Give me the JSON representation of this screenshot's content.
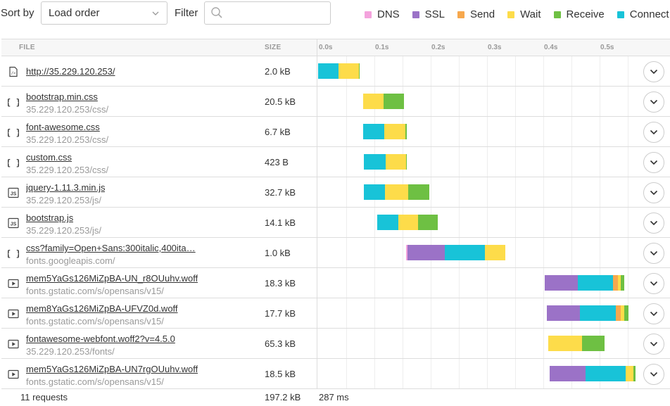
{
  "toolbar": {
    "sort_label": "Sort by",
    "sort_value": "Load order",
    "filter_label": "Filter",
    "filter_value": "",
    "filter_placeholder": ""
  },
  "legend": [
    {
      "label": "DNS",
      "color": "#f4a3dd"
    },
    {
      "label": "SSL",
      "color": "#9b72c7"
    },
    {
      "label": "Send",
      "color": "#f7a84d"
    },
    {
      "label": "Wait",
      "color": "#fddc4a"
    },
    {
      "label": "Receive",
      "color": "#6ec043"
    },
    {
      "label": "Connect",
      "color": "#18c3d8"
    }
  ],
  "table": {
    "headers": {
      "file": "FILE",
      "size": "SIZE"
    },
    "timeline_ticks": [
      "0.0s",
      "0.1s",
      "0.2s",
      "0.3s",
      "0.4s",
      "0.5s"
    ],
    "rows": [
      {
        "name": "http://35.229.120.253/",
        "path": "",
        "size": "2.0 kB",
        "icon": "html-file-icon",
        "start": 0.0,
        "phases": [
          [
            "connect",
            0.036
          ],
          [
            "wait",
            0.036
          ],
          [
            "receive",
            0.001
          ]
        ]
      },
      {
        "name": "bootstrap.min.css",
        "path": "35.229.120.253/css/",
        "size": "20.5 kB",
        "icon": "css-file-icon",
        "start": 0.08,
        "phases": [
          [
            "wait",
            0.036
          ],
          [
            "receive",
            0.036
          ]
        ]
      },
      {
        "name": "font-awesome.css",
        "path": "35.229.120.253/css/",
        "size": "6.7 kB",
        "icon": "css-file-icon",
        "start": 0.08,
        "phases": [
          [
            "connect",
            0.038
          ],
          [
            "wait",
            0.037
          ],
          [
            "receive",
            0.003
          ]
        ]
      },
      {
        "name": "custom.css",
        "path": "35.229.120.253/css/",
        "size": "423 B",
        "icon": "css-file-icon",
        "start": 0.081,
        "phases": [
          [
            "connect",
            0.039
          ],
          [
            "wait",
            0.036
          ],
          [
            "receive",
            0.001
          ]
        ]
      },
      {
        "name": "jquery-1.11.3.min.js",
        "path": "35.229.120.253/js/",
        "size": "32.7 kB",
        "icon": "js-file-icon",
        "start": 0.081,
        "phases": [
          [
            "connect",
            0.038
          ],
          [
            "wait",
            0.041
          ],
          [
            "receive",
            0.038
          ]
        ]
      },
      {
        "name": "bootstrap.js",
        "path": "35.229.120.253/js/",
        "size": "14.1 kB",
        "icon": "js-file-icon",
        "start": 0.105,
        "phases": [
          [
            "connect",
            0.037
          ],
          [
            "wait",
            0.036
          ],
          [
            "receive",
            0.035
          ]
        ]
      },
      {
        "name": "css?family=Open+Sans:300italic,400ita…",
        "path": "fonts.googleapis.com/",
        "size": "1.0 kB",
        "icon": "css-file-icon",
        "start": 0.156,
        "phases": [
          [
            "dns",
            0.003
          ],
          [
            "ssl",
            0.066
          ],
          [
            "connect",
            0.071
          ],
          [
            "wait",
            0.036
          ]
        ]
      },
      {
        "name": "mem5YaGs126MiZpBA-UN_r8OUuhv.woff",
        "path": "fonts.gstatic.com/s/opensans/v15/",
        "size": "18.3 kB",
        "icon": "media-file-icon",
        "start": 0.402,
        "phases": [
          [
            "ssl",
            0.059
          ],
          [
            "connect",
            0.063
          ],
          [
            "send",
            0.008
          ],
          [
            "wait",
            0.006
          ],
          [
            "receive",
            0.006
          ]
        ]
      },
      {
        "name": "mem8YaGs126MiZpBA-UFVZ0d.woff",
        "path": "fonts.gstatic.com/s/opensans/v15/",
        "size": "17.7 kB",
        "icon": "media-file-icon",
        "start": 0.406,
        "phases": [
          [
            "ssl",
            0.059
          ],
          [
            "connect",
            0.064
          ],
          [
            "send",
            0.008
          ],
          [
            "wait",
            0.007
          ],
          [
            "receive",
            0.007
          ]
        ]
      },
      {
        "name": "fontawesome-webfont.woff2?v=4.5.0",
        "path": "35.229.120.253/fonts/",
        "size": "65.3 kB",
        "icon": "media-file-icon",
        "start": 0.409,
        "phases": [
          [
            "wait",
            0.06
          ],
          [
            "receive",
            0.04
          ]
        ]
      },
      {
        "name": "mem5YaGs126MiZpBA-UN7rgOUuhv.woff",
        "path": "fonts.gstatic.com/s/opensans/v15/",
        "size": "18.5 kB",
        "icon": "media-file-icon",
        "start": 0.411,
        "phases": [
          [
            "ssl",
            0.064
          ],
          [
            "connect",
            0.071
          ],
          [
            "wait",
            0.014
          ],
          [
            "receive",
            0.004
          ]
        ]
      }
    ],
    "footer": {
      "requests": "11 requests",
      "total_size": "197.2 kB",
      "total_time": "287 ms"
    }
  }
}
